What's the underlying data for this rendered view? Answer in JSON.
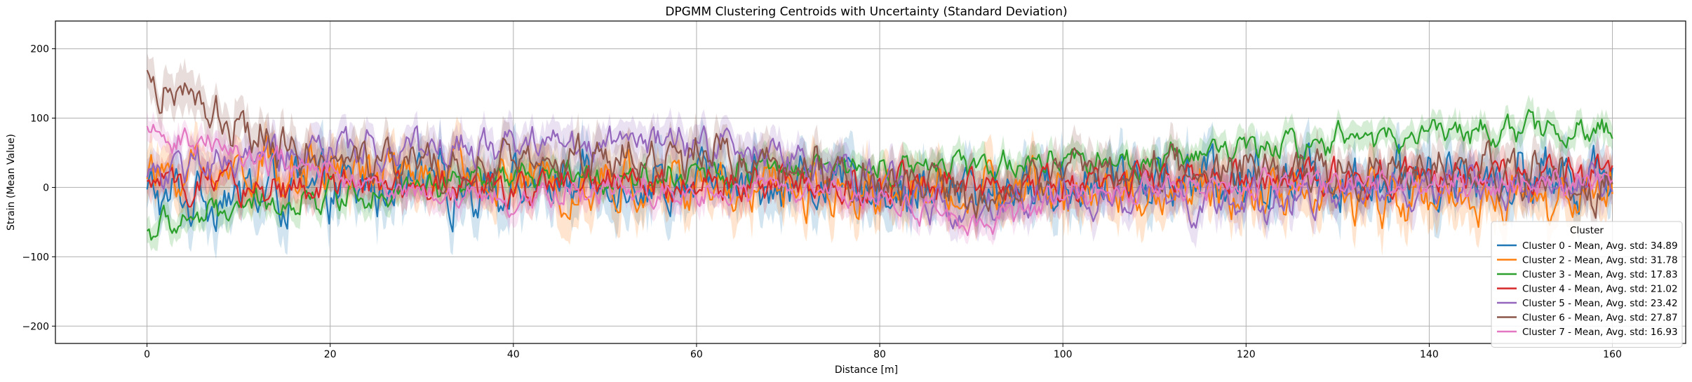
{
  "chart_data": {
    "type": "line",
    "title": "DPGMM Clustering Centroids with Uncertainty (Standard Deviation)",
    "xlabel": "Distance [m]",
    "ylabel": "Strain (Mean Value)",
    "xlim": [
      -10,
      168
    ],
    "ylim": [
      -225,
      240
    ],
    "xticks": [
      0,
      20,
      40,
      60,
      80,
      100,
      120,
      140,
      160
    ],
    "yticks": [
      -200,
      -100,
      0,
      100,
      200
    ],
    "grid": true,
    "legend": {
      "title": "Cluster",
      "placement": "lower-right"
    },
    "series": [
      {
        "name": "Cluster 0 - Mean, Avg. std: 34.89",
        "color": "#1f77b4",
        "std": 34.89,
        "x": [
          0,
          10,
          20,
          30,
          40,
          50,
          60,
          70,
          80,
          90,
          100,
          110,
          120,
          130,
          140,
          150,
          160
        ],
        "values": [
          -15,
          -10,
          -5,
          0,
          5,
          10,
          5,
          5,
          0,
          -5,
          5,
          10,
          15,
          15,
          20,
          15,
          20
        ]
      },
      {
        "name": "Cluster 2 - Mean, Avg. std: 31.78",
        "color": "#ff7f0e",
        "std": 31.78,
        "x": [
          0,
          10,
          20,
          30,
          40,
          50,
          60,
          70,
          80,
          90,
          100,
          110,
          120,
          130,
          140,
          150,
          160
        ],
        "values": [
          20,
          25,
          25,
          20,
          10,
          5,
          0,
          0,
          0,
          -5,
          -5,
          -10,
          -15,
          -15,
          -15,
          -15,
          -10
        ]
      },
      {
        "name": "Cluster 3 - Mean, Avg. std: 17.83",
        "color": "#2ca02c",
        "std": 17.83,
        "x": [
          0,
          10,
          20,
          30,
          40,
          50,
          60,
          70,
          80,
          90,
          100,
          110,
          120,
          130,
          140,
          150,
          160
        ],
        "values": [
          -60,
          -30,
          -10,
          0,
          10,
          15,
          20,
          25,
          30,
          30,
          35,
          40,
          55,
          70,
          80,
          85,
          75
        ]
      },
      {
        "name": "Cluster 4 - Mean, Avg. std: 21.02",
        "color": "#d62728",
        "std": 21.02,
        "x": [
          0,
          10,
          20,
          30,
          40,
          50,
          60,
          70,
          80,
          90,
          100,
          110,
          120,
          130,
          140,
          150,
          160
        ],
        "values": [
          5,
          0,
          0,
          0,
          0,
          5,
          5,
          5,
          5,
          5,
          5,
          10,
          10,
          15,
          15,
          15,
          20
        ]
      },
      {
        "name": "Cluster 5 - Mean, Avg. std: 23.42",
        "color": "#9467bd",
        "std": 23.42,
        "x": [
          0,
          10,
          20,
          30,
          40,
          50,
          60,
          70,
          80,
          90,
          100,
          110,
          120,
          130,
          140,
          150,
          160
        ],
        "values": [
          20,
          40,
          55,
          50,
          65,
          70,
          60,
          40,
          10,
          -40,
          -15,
          -15,
          -20,
          -10,
          0,
          5,
          5
        ]
      },
      {
        "name": "Cluster 6 - Mean, Avg. std: 27.87",
        "color": "#8c564b",
        "std": 27.87,
        "x": [
          0,
          10,
          20,
          30,
          40,
          50,
          60,
          70,
          80,
          90,
          100,
          110,
          120,
          130,
          140,
          150,
          160
        ],
        "values": [
          155,
          80,
          40,
          25,
          30,
          45,
          45,
          35,
          15,
          -20,
          25,
          30,
          25,
          25,
          25,
          20,
          0
        ]
      },
      {
        "name": "Cluster 7 - Mean, Avg. std: 16.93",
        "color": "#e377c2",
        "std": 16.93,
        "x": [
          0,
          10,
          20,
          30,
          40,
          50,
          60,
          70,
          80,
          90,
          100,
          110,
          120,
          130,
          140,
          150,
          160
        ],
        "values": [
          80,
          50,
          20,
          -10,
          -15,
          0,
          -5,
          0,
          -15,
          -60,
          -15,
          -5,
          0,
          5,
          10,
          10,
          5
        ]
      }
    ]
  }
}
